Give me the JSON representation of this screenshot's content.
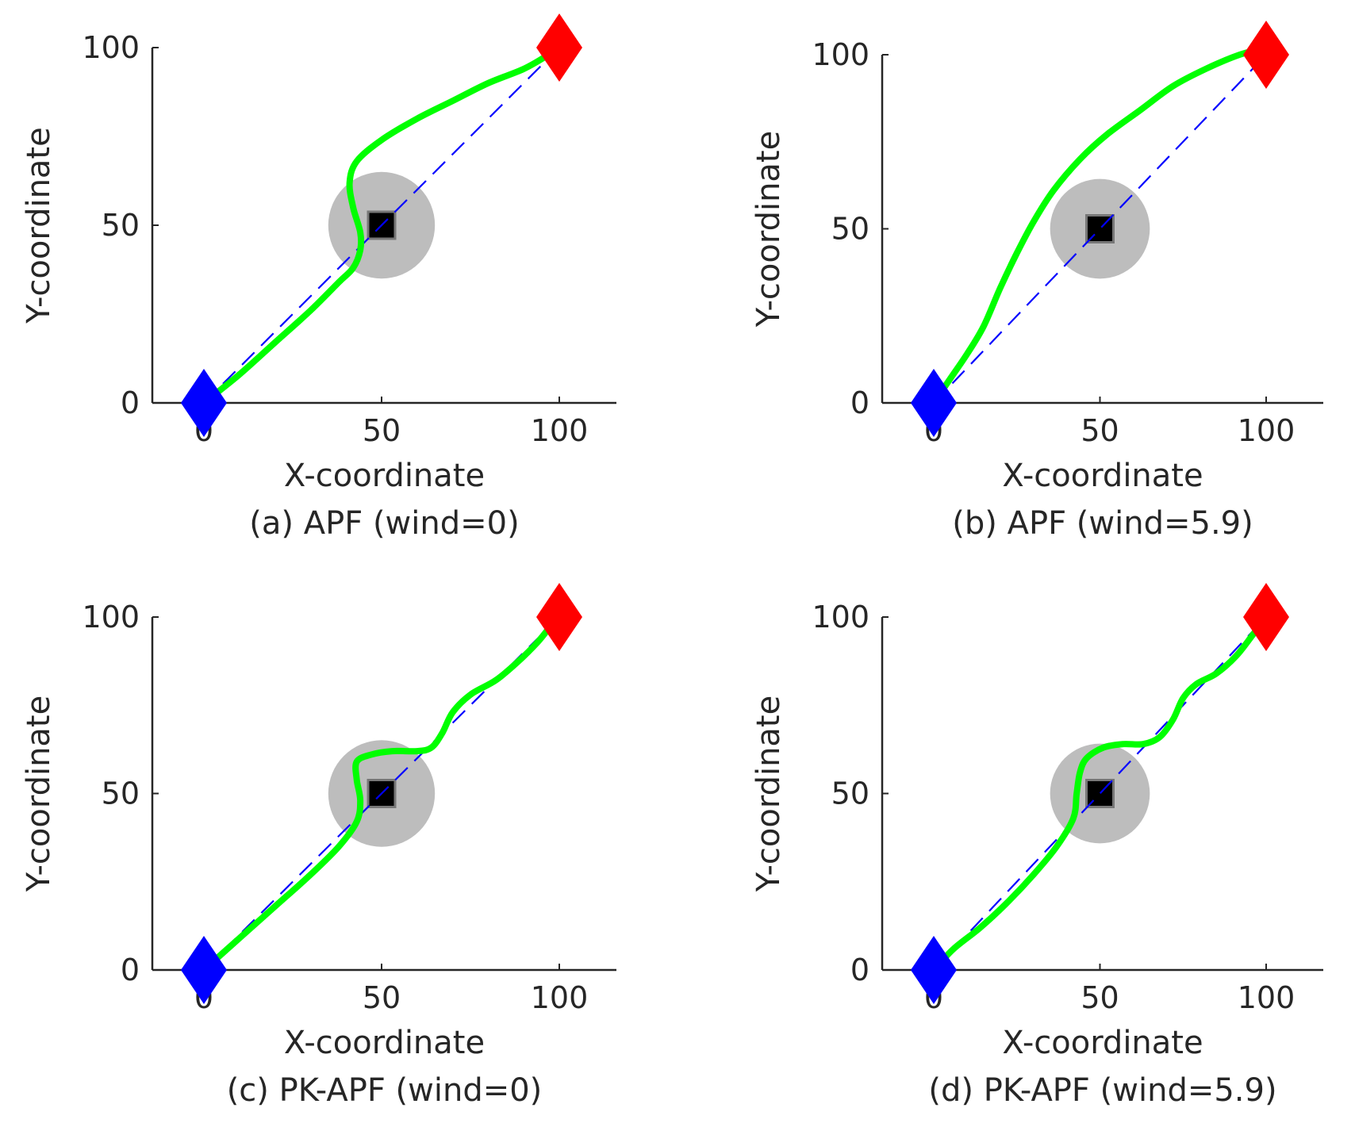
{
  "chart_data": [
    {
      "type": "line",
      "caption": "(a) APF (wind=0)",
      "xlabel": "X-coordinate",
      "ylabel": "Y-coordinate",
      "xlim": [
        -15,
        115
      ],
      "ylim": [
        0,
        100
      ],
      "xticks": [
        0,
        50,
        100
      ],
      "yticks": [
        0,
        50,
        100
      ],
      "grid": false,
      "start": {
        "x": 0,
        "y": 0,
        "color": "#0000ff"
      },
      "goal": {
        "x": 100,
        "y": 100,
        "color": "#ff0000"
      },
      "obstacle": {
        "x": 50,
        "y": 50,
        "radius": 15,
        "color": "#bdbdbd",
        "core_color": "#000000"
      },
      "series": [
        {
          "name": "straight line",
          "color": "#0000ff",
          "style": "dashed",
          "points": [
            [
              0,
              0
            ],
            [
              100,
              100
            ]
          ]
        },
        {
          "name": "planned path",
          "color": "#00ff00",
          "style": "solid",
          "points": [
            [
              0,
              0
            ],
            [
              10,
              8
            ],
            [
              20,
              17
            ],
            [
              30,
              26
            ],
            [
              38,
              34
            ],
            [
              42,
              38
            ],
            [
              44,
              43
            ],
            [
              44,
              48
            ],
            [
              42,
              55
            ],
            [
              41,
              62
            ],
            [
              43,
              68
            ],
            [
              50,
              74
            ],
            [
              60,
              80
            ],
            [
              70,
              85
            ],
            [
              80,
              90
            ],
            [
              90,
              94
            ],
            [
              97,
              98
            ],
            [
              100,
              100
            ]
          ]
        }
      ]
    },
    {
      "type": "line",
      "caption": "(b) APF (wind=5.9)",
      "xlabel": "X-coordinate",
      "ylabel": "Y-coordinate",
      "xlim": [
        -15,
        115
      ],
      "ylim": [
        0,
        100
      ],
      "xticks": [
        0,
        50,
        100
      ],
      "yticks": [
        0,
        50,
        100
      ],
      "grid": false,
      "start": {
        "x": 0,
        "y": 0,
        "color": "#0000ff"
      },
      "goal": {
        "x": 100,
        "y": 100,
        "color": "#ff0000"
      },
      "obstacle": {
        "x": 50,
        "y": 50,
        "radius": 15,
        "color": "#bdbdbd",
        "core_color": "#000000"
      },
      "series": [
        {
          "name": "straight line",
          "color": "#0000ff",
          "style": "dashed",
          "points": [
            [
              0,
              0
            ],
            [
              100,
              100
            ]
          ]
        },
        {
          "name": "planned path",
          "color": "#00ff00",
          "style": "solid",
          "points": [
            [
              0,
              0
            ],
            [
              5,
              7
            ],
            [
              10,
              14
            ],
            [
              15,
              22
            ],
            [
              20,
              33
            ],
            [
              25,
              43
            ],
            [
              30,
              52
            ],
            [
              36,
              61
            ],
            [
              44,
              70
            ],
            [
              52,
              77
            ],
            [
              62,
              84
            ],
            [
              72,
              91
            ],
            [
              82,
              96
            ],
            [
              92,
              100
            ],
            [
              97,
              101
            ],
            [
              100,
              100
            ]
          ]
        }
      ]
    },
    {
      "type": "line",
      "caption": "(c) PK-APF (wind=0)",
      "xlabel": "X-coordinate",
      "ylabel": "Y-coordinate",
      "xlim": [
        -15,
        115
      ],
      "ylim": [
        0,
        100
      ],
      "xticks": [
        0,
        50,
        100
      ],
      "yticks": [
        0,
        50,
        100
      ],
      "grid": false,
      "start": {
        "x": 0,
        "y": 0,
        "color": "#0000ff"
      },
      "goal": {
        "x": 100,
        "y": 100,
        "color": "#ff0000"
      },
      "obstacle": {
        "x": 50,
        "y": 50,
        "radius": 15,
        "color": "#bdbdbd",
        "core_color": "#000000"
      },
      "series": [
        {
          "name": "straight line",
          "color": "#0000ff",
          "style": "dashed",
          "points": [
            [
              0,
              0
            ],
            [
              100,
              100
            ]
          ]
        },
        {
          "name": "planned path",
          "color": "#00ff00",
          "style": "solid",
          "points": [
            [
              0,
              0
            ],
            [
              10,
              9
            ],
            [
              20,
              18
            ],
            [
              30,
              27
            ],
            [
              38,
              35
            ],
            [
              43,
              42
            ],
            [
              44,
              48
            ],
            [
              43,
              54
            ],
            [
              43,
              59
            ],
            [
              47,
              61
            ],
            [
              53,
              62
            ],
            [
              60,
              62
            ],
            [
              64,
              63
            ],
            [
              67,
              67
            ],
            [
              70,
              73
            ],
            [
              75,
              78
            ],
            [
              82,
              82
            ],
            [
              88,
              87
            ],
            [
              94,
              93
            ],
            [
              98,
              98
            ],
            [
              100,
              100
            ]
          ]
        }
      ]
    },
    {
      "type": "line",
      "caption": "(d) PK-APF (wind=5.9)",
      "xlabel": "X-coordinate",
      "ylabel": "Y-coordinate",
      "xlim": [
        -15,
        115
      ],
      "ylim": [
        0,
        100
      ],
      "xticks": [
        0,
        50,
        100
      ],
      "yticks": [
        0,
        50,
        100
      ],
      "grid": false,
      "start": {
        "x": 0,
        "y": 0,
        "color": "#0000ff"
      },
      "goal": {
        "x": 100,
        "y": 100,
        "color": "#ff0000"
      },
      "obstacle": {
        "x": 50,
        "y": 50,
        "radius": 15,
        "color": "#bdbdbd",
        "core_color": "#000000"
      },
      "series": [
        {
          "name": "straight line",
          "color": "#0000ff",
          "style": "dashed",
          "points": [
            [
              0,
              0
            ],
            [
              100,
              100
            ]
          ]
        },
        {
          "name": "planned path",
          "color": "#00ff00",
          "style": "solid",
          "points": [
            [
              0,
              0
            ],
            [
              6,
              6
            ],
            [
              14,
              12
            ],
            [
              22,
              19
            ],
            [
              30,
              27
            ],
            [
              37,
              35
            ],
            [
              42,
              43
            ],
            [
              43,
              50
            ],
            [
              44,
              56
            ],
            [
              46,
              60
            ],
            [
              51,
              63
            ],
            [
              57,
              64
            ],
            [
              63,
              64
            ],
            [
              68,
              66
            ],
            [
              72,
              71
            ],
            [
              75,
              77
            ],
            [
              79,
              81
            ],
            [
              85,
              84
            ],
            [
              91,
              89
            ],
            [
              96,
              95
            ],
            [
              100,
              100
            ]
          ]
        }
      ]
    }
  ]
}
